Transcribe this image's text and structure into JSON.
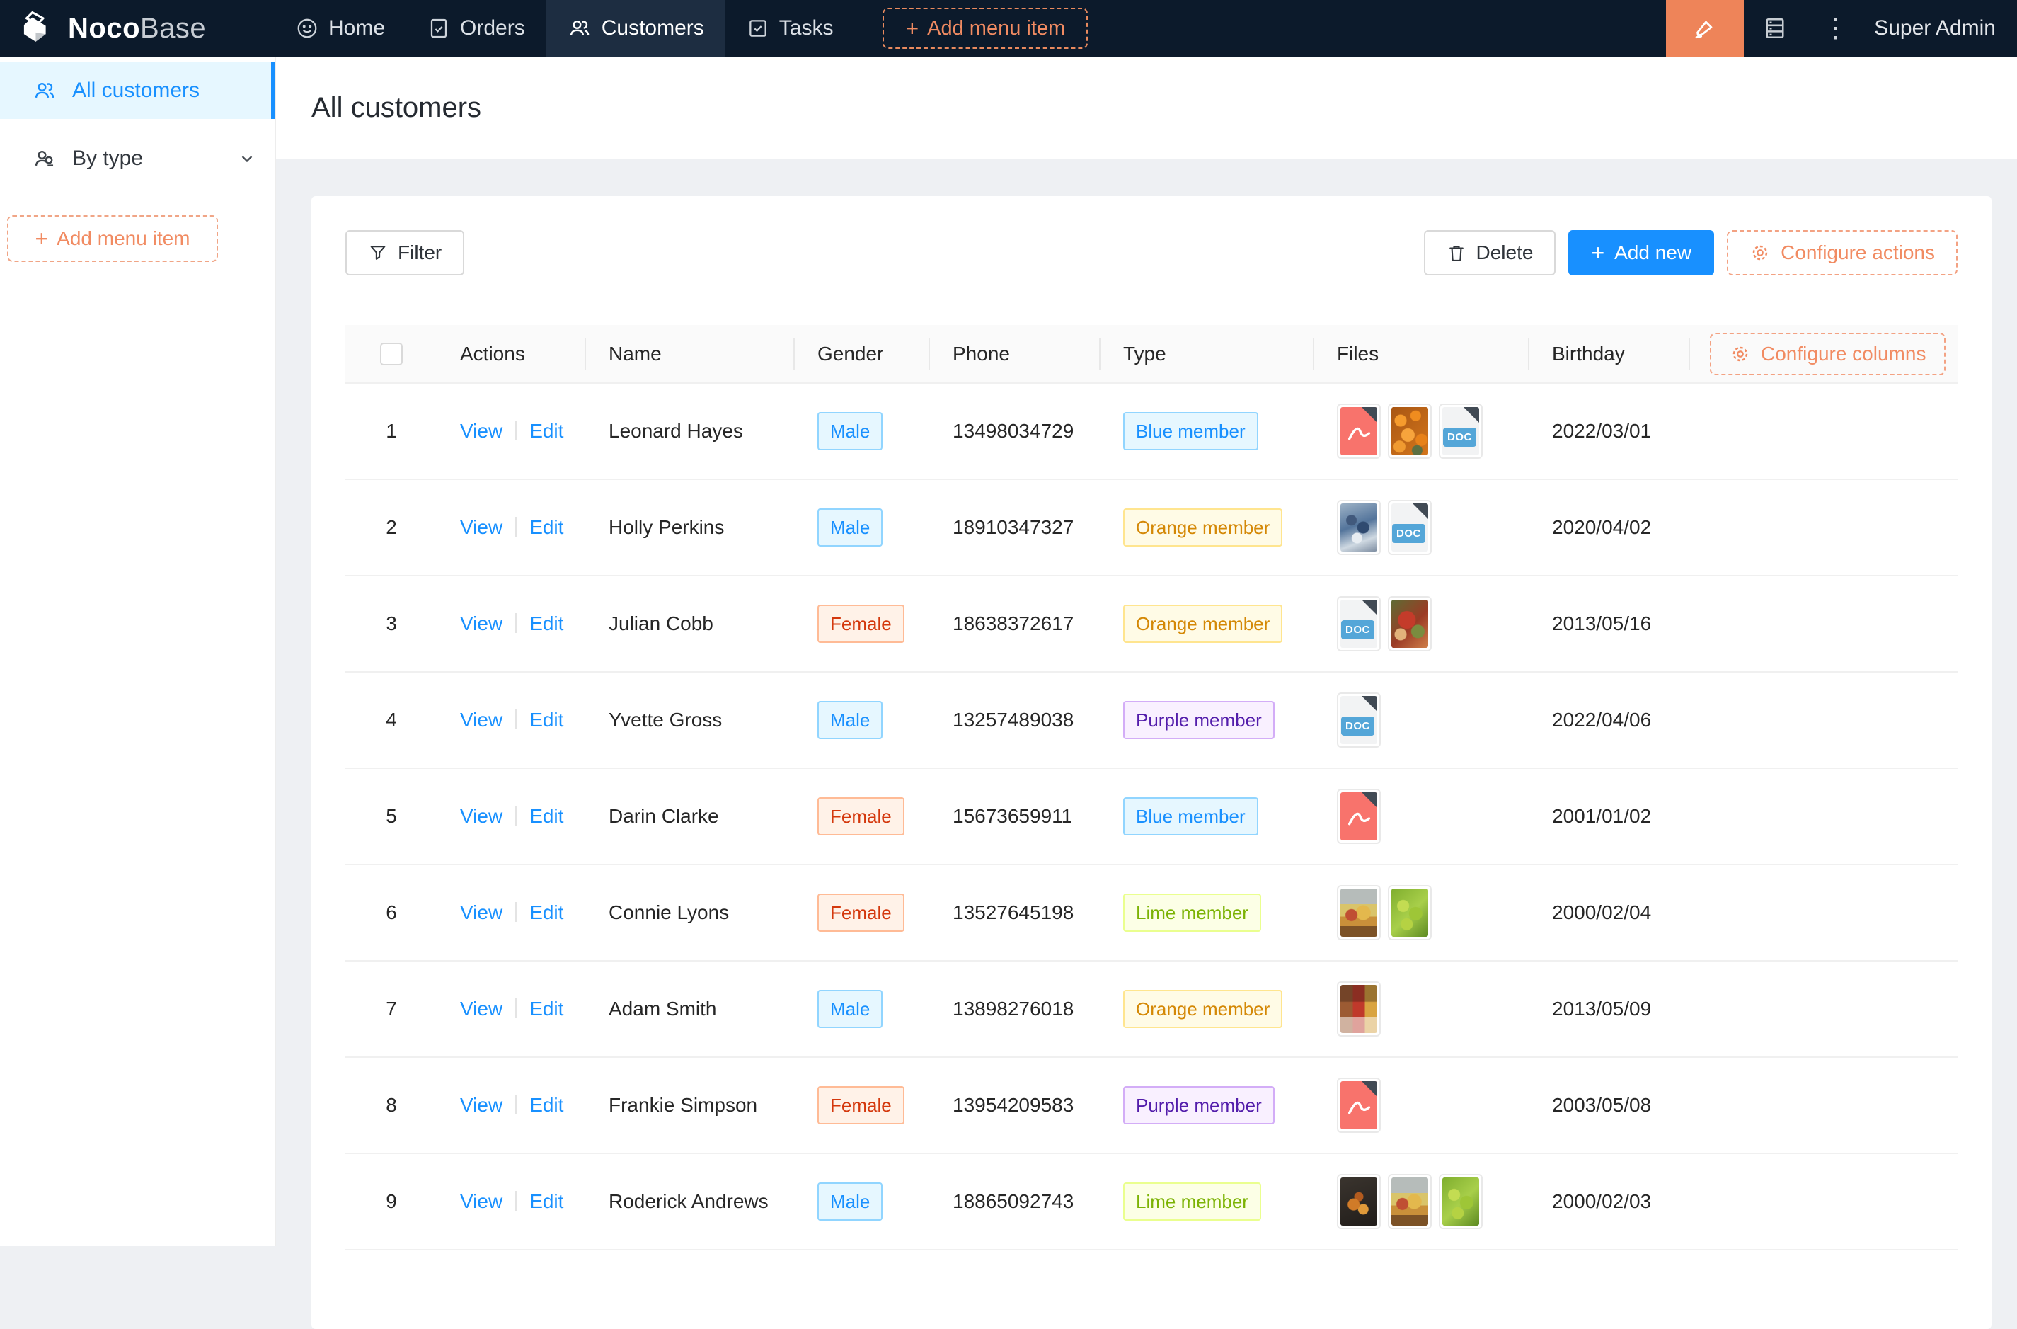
{
  "navbar": {
    "brand": {
      "bold": "Noco",
      "light": "Base"
    },
    "items": [
      {
        "label": "Home",
        "icon": "smile-icon",
        "active": false
      },
      {
        "label": "Orders",
        "icon": "file-done-icon",
        "active": false
      },
      {
        "label": "Customers",
        "icon": "team-icon",
        "active": true
      },
      {
        "label": "Tasks",
        "icon": "check-square-icon",
        "active": false
      }
    ],
    "add_menu_item_label": "Add menu item",
    "right_icons": [
      "highlighter-icon",
      "database-icon",
      "kebab-icon"
    ],
    "user": "Super Admin"
  },
  "sidebar": {
    "items": [
      {
        "label": "All customers",
        "icon": "team-icon",
        "active": true
      },
      {
        "label": "By type",
        "icon": "user-group-icon",
        "active": false,
        "has_submenu": true
      }
    ],
    "add_menu_item_label": "Add menu item"
  },
  "page": {
    "title": "All customers"
  },
  "toolbar": {
    "filter_label": "Filter",
    "delete_label": "Delete",
    "add_new_label": "Add new",
    "configure_actions_label": "Configure actions"
  },
  "table": {
    "configure_columns_label": "Configure columns",
    "doc_label": "DOC",
    "columns": {
      "actions": "Actions",
      "name": "Name",
      "gender": "Gender",
      "phone": "Phone",
      "type": "Type",
      "files": "Files",
      "birthday": "Birthday"
    },
    "action_labels": {
      "view": "View",
      "edit": "Edit"
    },
    "rows": [
      {
        "index": 1,
        "name": "Leonard Hayes",
        "gender": {
          "label": "Male",
          "color": "blue"
        },
        "phone": "13498034729",
        "type": {
          "label": "Blue member",
          "color": "blue"
        },
        "files": [
          "pdf",
          "oranges",
          "doc"
        ],
        "birthday": "2022/03/01"
      },
      {
        "index": 2,
        "name": "Holly Perkins",
        "gender": {
          "label": "Male",
          "color": "blue"
        },
        "phone": "18910347327",
        "type": {
          "label": "Orange member",
          "color": "gold"
        },
        "files": [
          "crowd",
          "doc"
        ],
        "birthday": "2020/04/02"
      },
      {
        "index": 3,
        "name": "Julian Cobb",
        "gender": {
          "label": "Female",
          "color": "volcano"
        },
        "phone": "18638372617",
        "type": {
          "label": "Orange member",
          "color": "gold"
        },
        "files": [
          "doc",
          "dish"
        ],
        "birthday": "2013/05/16"
      },
      {
        "index": 4,
        "name": "Yvette Gross",
        "gender": {
          "label": "Male",
          "color": "blue"
        },
        "phone": "13257489038",
        "type": {
          "label": "Purple member",
          "color": "purple"
        },
        "files": [
          "doc"
        ],
        "birthday": "2022/04/06"
      },
      {
        "index": 5,
        "name": "Darin Clarke",
        "gender": {
          "label": "Female",
          "color": "volcano"
        },
        "phone": "15673659911",
        "type": {
          "label": "Blue member",
          "color": "blue"
        },
        "files": [
          "pdf"
        ],
        "birthday": "2001/01/02"
      },
      {
        "index": 6,
        "name": "Connie Lyons",
        "gender": {
          "label": "Female",
          "color": "volcano"
        },
        "phone": "13527645198",
        "type": {
          "label": "Lime member",
          "color": "lime"
        },
        "files": [
          "fruit",
          "grapes"
        ],
        "birthday": "2000/02/04"
      },
      {
        "index": 7,
        "name": "Adam Smith",
        "gender": {
          "label": "Male",
          "color": "blue"
        },
        "phone": "13898276018",
        "type": {
          "label": "Orange member",
          "color": "gold"
        },
        "files": [
          "collage"
        ],
        "birthday": "2013/05/09"
      },
      {
        "index": 8,
        "name": "Frankie Simpson",
        "gender": {
          "label": "Female",
          "color": "volcano"
        },
        "phone": "13954209583",
        "type": {
          "label": "Purple member",
          "color": "purple"
        },
        "files": [
          "pdf"
        ],
        "birthday": "2003/05/08"
      },
      {
        "index": 9,
        "name": "Roderick Andrews",
        "gender": {
          "label": "Male",
          "color": "blue"
        },
        "phone": "18865092743",
        "type": {
          "label": "Lime member",
          "color": "lime"
        },
        "files": [
          "darkfruit",
          "fruit",
          "grapes"
        ],
        "birthday": "2000/02/03"
      }
    ]
  },
  "colors": {
    "accent_blue": "#1890ff",
    "designer_orange": "#f18b62",
    "navbar_bg": "#0c1a2b",
    "navbar_active_bg": "#1d2d41",
    "sidebar_active_bg": "#e6f7ff",
    "content_bg": "#eef0f3",
    "table_header_bg": "#fafafa"
  }
}
